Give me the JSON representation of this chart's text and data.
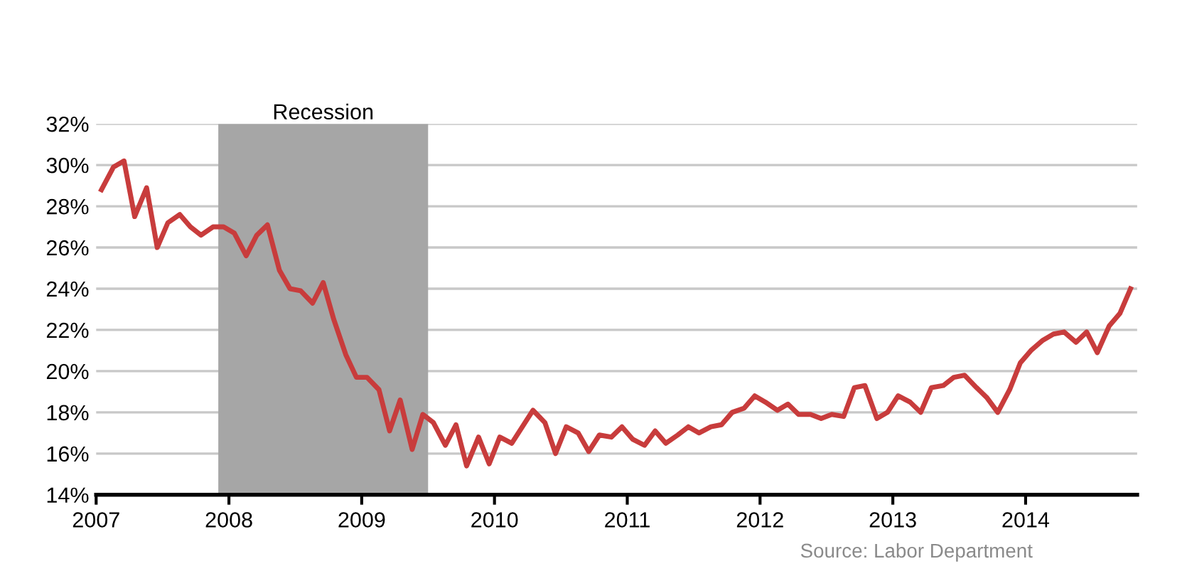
{
  "chart_data": {
    "type": "line",
    "x": [
      2007.04,
      2007.13,
      2007.21,
      2007.29,
      2007.38,
      2007.46,
      2007.54,
      2007.63,
      2007.71,
      2007.79,
      2007.88,
      2007.96,
      2008.04,
      2008.13,
      2008.21,
      2008.29,
      2008.38,
      2008.46,
      2008.54,
      2008.63,
      2008.71,
      2008.79,
      2008.88,
      2008.96,
      2009.04,
      2009.13,
      2009.21,
      2009.29,
      2009.38,
      2009.46,
      2009.54,
      2009.63,
      2009.71,
      2009.79,
      2009.88,
      2009.96,
      2010.04,
      2010.13,
      2010.21,
      2010.29,
      2010.38,
      2010.46,
      2010.54,
      2010.63,
      2010.71,
      2010.79,
      2010.88,
      2010.96,
      2011.04,
      2011.13,
      2011.21,
      2011.29,
      2011.38,
      2011.46,
      2011.54,
      2011.63,
      2011.71,
      2011.79,
      2011.88,
      2011.96,
      2012.04,
      2012.13,
      2012.21,
      2012.29,
      2012.38,
      2012.46,
      2012.54,
      2012.63,
      2012.71,
      2012.79,
      2012.88,
      2012.96,
      2013.04,
      2013.13,
      2013.21,
      2013.29,
      2013.38,
      2013.46,
      2013.54,
      2013.63,
      2013.71,
      2013.79,
      2013.88,
      2013.96,
      2014.04,
      2014.13,
      2014.21,
      2014.29,
      2014.38,
      2014.46,
      2014.54,
      2014.63,
      2014.71,
      2014.79
    ],
    "series": [
      {
        "color": "#c83c3c",
        "values": [
          28.8,
          29.9,
          30.2,
          27.5,
          28.9,
          26.0,
          27.2,
          27.6,
          27.0,
          26.6,
          27.0,
          27.0,
          26.7,
          25.6,
          26.6,
          27.1,
          24.9,
          24.0,
          23.9,
          23.3,
          24.3,
          22.5,
          20.8,
          19.7,
          19.7,
          19.1,
          17.1,
          18.6,
          16.2,
          17.9,
          17.5,
          16.4,
          17.4,
          15.4,
          16.8,
          15.5,
          16.8,
          16.5,
          17.3,
          18.1,
          17.5,
          16.0,
          17.3,
          17.0,
          16.1,
          16.9,
          16.8,
          17.3,
          16.7,
          16.4,
          17.1,
          16.5,
          16.9,
          17.3,
          17.0,
          17.3,
          17.4,
          18.0,
          18.2,
          18.8,
          18.5,
          18.1,
          18.4,
          17.9,
          17.9,
          17.7,
          17.9,
          17.8,
          19.2,
          19.3,
          17.7,
          18.0,
          18.8,
          18.5,
          18.0,
          19.2,
          19.3,
          19.7,
          19.8,
          19.2,
          18.7,
          18.0,
          19.1,
          20.4,
          21.0,
          21.5,
          21.8,
          21.9,
          21.4,
          21.9,
          20.9,
          22.2,
          22.8,
          24.0
        ]
      }
    ],
    "xlim": [
      2007,
      2014.84
    ],
    "xticks": [
      2007,
      2008,
      2009,
      2010,
      2011,
      2012,
      2013,
      2014
    ],
    "ylim": [
      14,
      32
    ],
    "yticks": [
      {
        "value": 14,
        "label": "14%"
      },
      {
        "value": 16,
        "label": "16%"
      },
      {
        "value": 18,
        "label": "18%"
      },
      {
        "value": 20,
        "label": "20%"
      },
      {
        "value": 22,
        "label": "22%"
      },
      {
        "value": 24,
        "label": "24%"
      },
      {
        "value": 26,
        "label": "26%"
      },
      {
        "value": 28,
        "label": "28%"
      },
      {
        "value": 30,
        "label": "30%"
      },
      {
        "value": 32,
        "label": "32%"
      }
    ],
    "bands": [
      {
        "axis": "x",
        "from": 2007.92,
        "to": 2009.5,
        "label": "Recession",
        "color": "#a6a6a6"
      }
    ],
    "grid": "y",
    "marker": "none",
    "line_style": "solid",
    "annotations": [
      "Source: Labor Department"
    ]
  }
}
